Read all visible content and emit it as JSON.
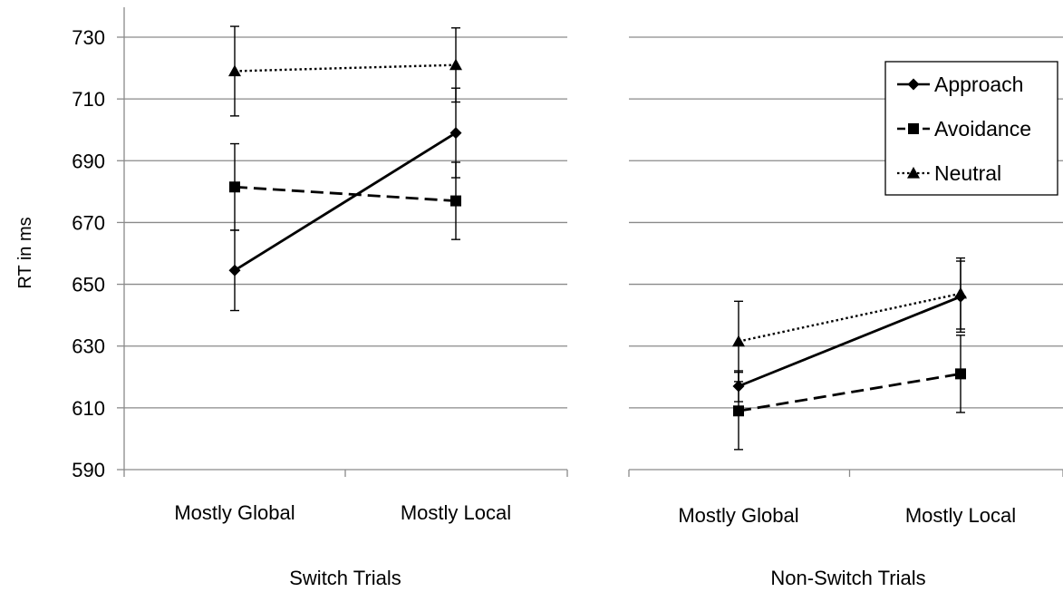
{
  "chart_data": {
    "type": "line",
    "ylabel": "RT in ms",
    "ylim": [
      590,
      730
    ],
    "yticks": [
      590,
      610,
      630,
      650,
      670,
      690,
      710,
      730
    ],
    "grid": true,
    "legend_position": "top-right",
    "categories": [
      "Mostly Global",
      "Mostly Local"
    ],
    "series_styles": [
      {
        "name": "Approach",
        "marker": "diamond",
        "dash": "solid"
      },
      {
        "name": "Avoidance",
        "marker": "square",
        "dash": "dashed"
      },
      {
        "name": "Neutral",
        "marker": "triangle",
        "dash": "dotted"
      }
    ],
    "panels": [
      {
        "title": "Switch Trials",
        "series": [
          {
            "name": "Approach",
            "values": [
              654.5,
              699
            ],
            "errors": [
              13,
              14.5
            ]
          },
          {
            "name": "Avoidance",
            "values": [
              681.5,
              677
            ],
            "errors": [
              14,
              12.5
            ]
          },
          {
            "name": "Neutral",
            "values": [
              719,
              721
            ],
            "errors": [
              14.5,
              12
            ]
          }
        ]
      },
      {
        "title": "Non-Switch Trials",
        "series": [
          {
            "name": "Approach",
            "values": [
              617,
              646
            ],
            "errors": [
              5,
              11.5
            ]
          },
          {
            "name": "Avoidance",
            "values": [
              609,
              621
            ],
            "errors": [
              12.5,
              12.5
            ]
          },
          {
            "name": "Neutral",
            "values": [
              631.5,
              647
            ],
            "errors": [
              13,
              11.5
            ]
          }
        ]
      }
    ]
  }
}
